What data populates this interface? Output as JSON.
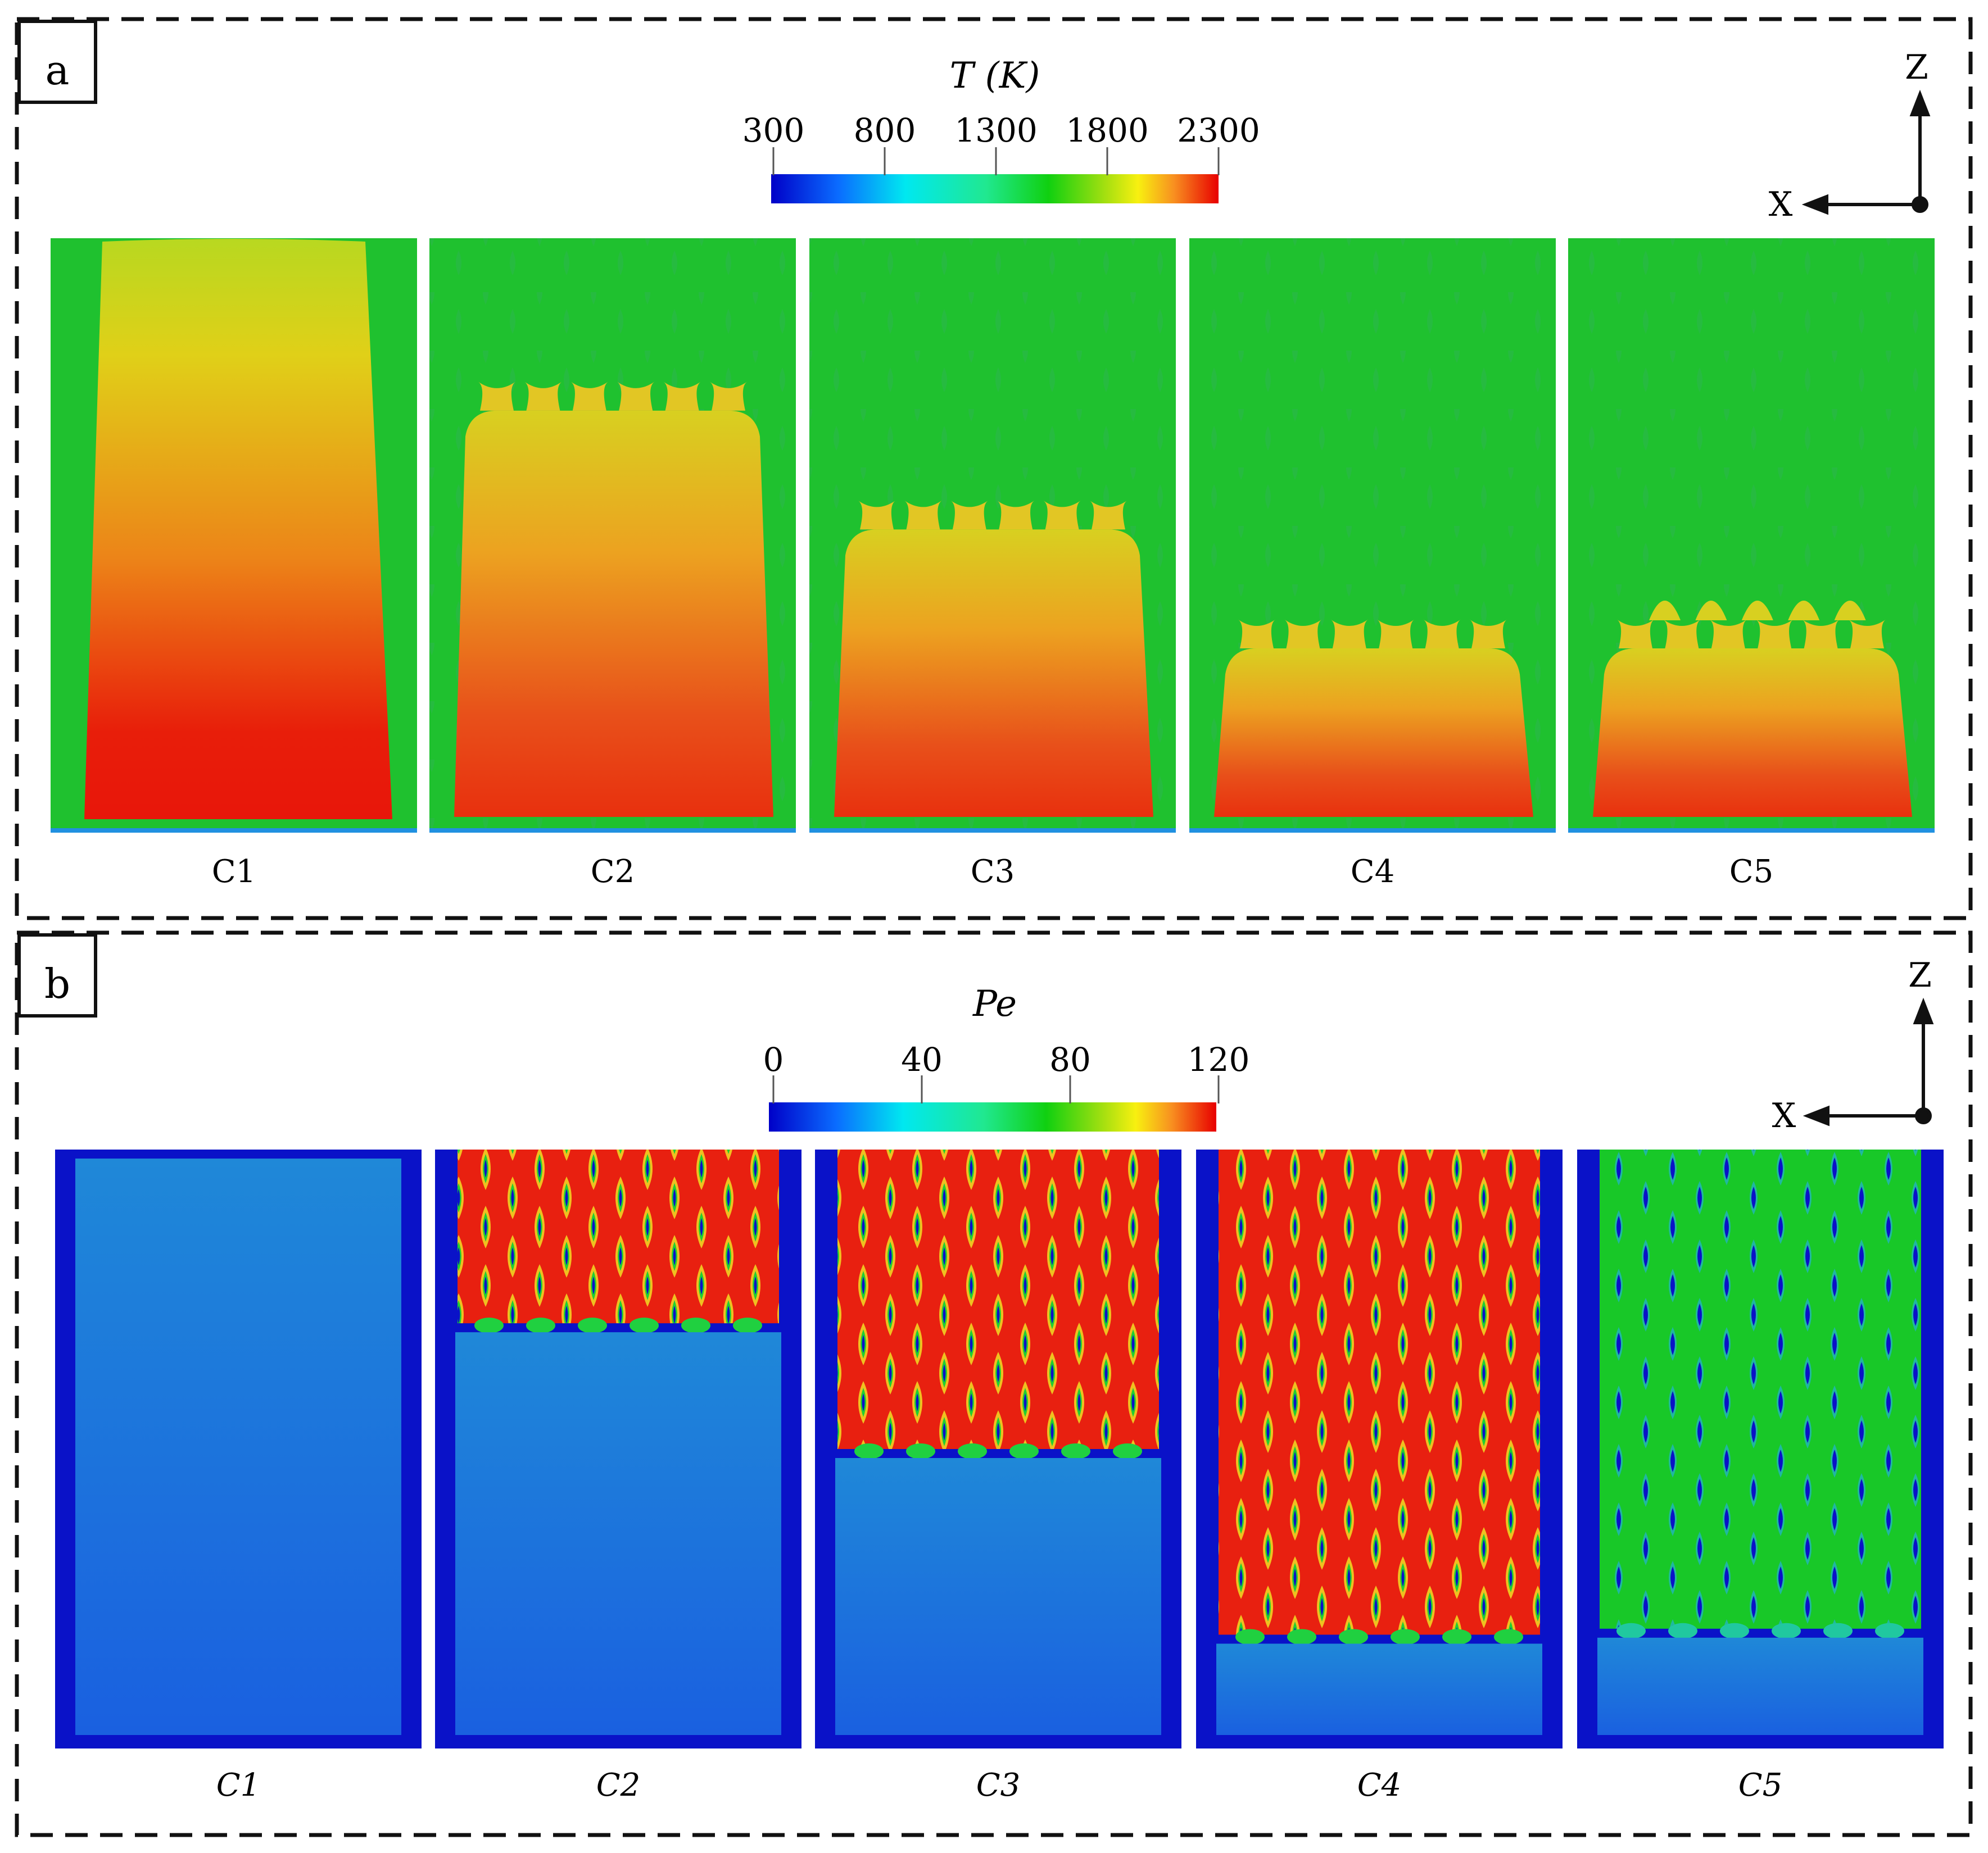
{
  "panel_a": {
    "label": "a",
    "colorbar": {
      "title": "T (K)",
      "ticks": [
        "300",
        "800",
        "1300",
        "1800",
        "2300"
      ]
    },
    "axes": {
      "vertical": "Z",
      "horizontal": "X"
    },
    "cases": [
      {
        "label": "C1",
        "hot_front": 0.0
      },
      {
        "label": "C2",
        "hot_front": 0.29
      },
      {
        "label": "C3",
        "hot_front": 0.49
      },
      {
        "label": "C4",
        "hot_front": 0.69
      },
      {
        "label": "C5",
        "hot_front": 0.69
      }
    ]
  },
  "panel_b": {
    "label": "b",
    "colorbar": {
      "title": "Pe",
      "ticks": [
        "0",
        "40",
        "80",
        "120"
      ]
    },
    "axes": {
      "vertical": "Z",
      "horizontal": "X"
    },
    "cases": [
      {
        "label": "C1",
        "lattice_end": 0.0
      },
      {
        "label": "C2",
        "lattice_end": 0.29
      },
      {
        "label": "C3",
        "lattice_end": 0.5
      },
      {
        "label": "C4",
        "lattice_end": 0.81
      },
      {
        "label": "C5",
        "lattice_end": 0.8
      }
    ]
  },
  "colors": {
    "background_a": "#1fc12f",
    "background_b": "#0a12c8",
    "hot": "#e8150a",
    "warm": "#f0a820",
    "fluid_b": "#1f7fd6"
  }
}
